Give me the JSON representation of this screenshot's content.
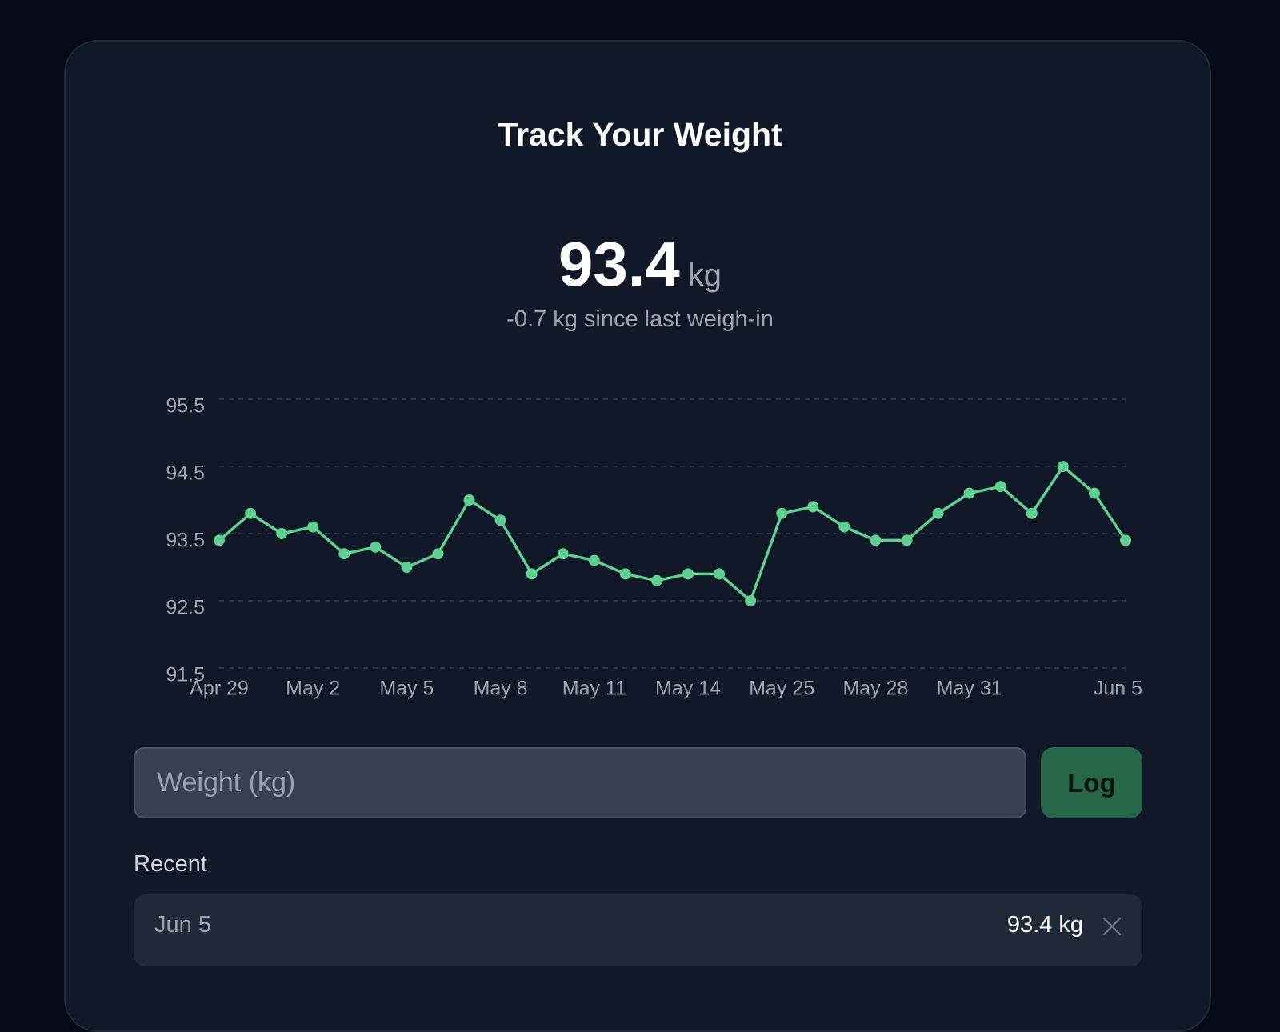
{
  "header": {
    "title": "Track Your Weight"
  },
  "current": {
    "value": "93.4",
    "unit": "kg",
    "change": "-0.7 kg since last weigh-in"
  },
  "chart_data": {
    "type": "line",
    "categories": [
      "Apr 29",
      null,
      null,
      "May 2",
      null,
      null,
      "May 5",
      null,
      null,
      "May 8",
      null,
      null,
      "May 11",
      null,
      null,
      "May 14",
      null,
      null,
      "May 25",
      null,
      null,
      "May 28",
      null,
      null,
      "May 31",
      null,
      null,
      null,
      null,
      "Jun 5"
    ],
    "values": [
      93.4,
      93.8,
      93.5,
      93.6,
      93.2,
      93.3,
      93.0,
      93.2,
      94.0,
      93.7,
      92.9,
      93.2,
      93.1,
      92.9,
      92.8,
      92.9,
      92.9,
      92.5,
      93.8,
      93.9,
      93.6,
      93.4,
      93.4,
      93.8,
      94.1,
      94.2,
      93.8,
      94.5,
      94.1,
      93.4
    ],
    "color": "#5fd08f",
    "ylim": [
      91.5,
      95.5
    ],
    "yticks": [
      91.5,
      92.5,
      93.5,
      94.5,
      95.5
    ],
    "grid": true
  },
  "form": {
    "placeholder": "Weight (kg)",
    "button": "Log"
  },
  "recent": {
    "heading": "Recent",
    "rows": [
      {
        "date": "Jun 5",
        "weight": "93.4 kg"
      }
    ]
  }
}
